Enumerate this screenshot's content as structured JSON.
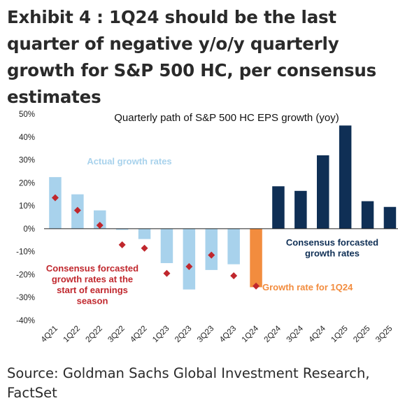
{
  "header": {
    "title": "Exhibit 4 : 1Q24 should be the last quarter of negative y/o/y quarterly growth for S&P 500 HC, per consensus estimates"
  },
  "footer": {
    "source": "Source: Goldman Sachs Global Investment Research, FactSet"
  },
  "chart_data": {
    "type": "bar",
    "title": "Quarterly path of S&P 500 HC EPS growth (yoy)",
    "xlabel": "",
    "ylabel": "",
    "ylim": [
      -40,
      50
    ],
    "yticks": [
      "50%",
      "40%",
      "30%",
      "20%",
      "10%",
      "0%",
      "-10%",
      "-20%",
      "-30%",
      "-40%"
    ],
    "yticks_values": [
      50,
      40,
      30,
      20,
      10,
      0,
      -10,
      -20,
      -30,
      -40
    ],
    "grid": false,
    "legend": "none",
    "categories": [
      "4Q21",
      "1Q22",
      "2Q22",
      "3Q22",
      "4Q22",
      "1Q23",
      "2Q23",
      "3Q23",
      "4Q23",
      "1Q24",
      "2Q24",
      "3Q24",
      "4Q24",
      "1Q25",
      "2Q25",
      "3Q25"
    ],
    "series": [
      {
        "kind": "bar",
        "values": [
          22.5,
          15,
          8,
          -0.5,
          -4.5,
          -15,
          -26.5,
          -18,
          -15.5,
          -25.5,
          18.5,
          16.5,
          32,
          45,
          12,
          9.5
        ],
        "colors": [
          "#a8d2ec",
          "#a8d2ec",
          "#a8d2ec",
          "#a8d2ec",
          "#a8d2ec",
          "#a8d2ec",
          "#a8d2ec",
          "#a8d2ec",
          "#a8d2ec",
          "#f28c3e",
          "#0f2f55",
          "#0f2f55",
          "#0f2f55",
          "#0f2f55",
          "#0f2f55",
          "#0f2f55"
        ]
      },
      {
        "kind": "marker",
        "color": "#c0272d",
        "values": [
          13.5,
          8,
          1.5,
          -7,
          -8.5,
          -19.5,
          -16.5,
          -11.5,
          -20.5,
          -25,
          null,
          null,
          null,
          null,
          null,
          null
        ]
      }
    ],
    "annotations": [
      {
        "text": "Actual growth rates",
        "color": "#a8d2ec"
      },
      {
        "text": "Consensus forcasted growth rates at the start of earnings season",
        "color": "#c0272d"
      },
      {
        "text": "Growth rate for 1Q24",
        "color": "#f28c3e"
      },
      {
        "text": "Consensus forcasted growth rates",
        "color": "#0f2f55"
      }
    ],
    "colors": {
      "actual": "#a8d2ec",
      "current": "#f28c3e",
      "forecast": "#0f2f55",
      "consensus_marker": "#c0272d",
      "axis": "#222222"
    }
  }
}
